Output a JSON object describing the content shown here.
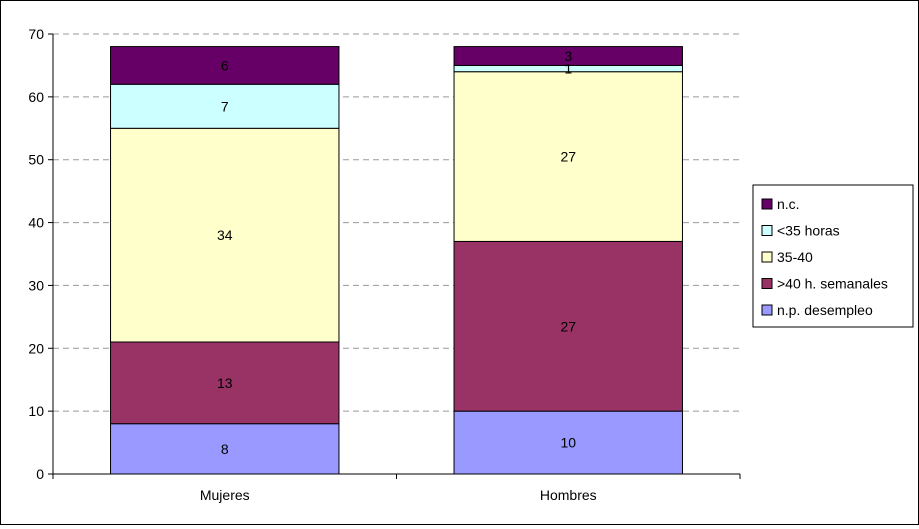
{
  "chart_data": {
    "type": "bar",
    "stacked": true,
    "categories": [
      "Mujeres",
      "Hombres"
    ],
    "series": [
      {
        "name": "n.p. desempleo",
        "values": [
          8,
          10
        ],
        "color": "#9999ff"
      },
      {
        "name": ">40 h. semanales",
        "values": [
          13,
          27
        ],
        "color": "#993366"
      },
      {
        "name": "35-40",
        "values": [
          34,
          27
        ],
        "color": "#ffffcc"
      },
      {
        "name": "<35 horas",
        "values": [
          7,
          1
        ],
        "color": "#ccffff"
      },
      {
        "name": "n.c.",
        "values": [
          6,
          3
        ],
        "color": "#660066"
      }
    ],
    "data_labels": [
      [
        "8",
        "10"
      ],
      [
        "13",
        "27"
      ],
      [
        "34",
        "27"
      ],
      [
        "7",
        "1"
      ],
      [
        "6",
        "3"
      ]
    ],
    "ylim": [
      0,
      70
    ],
    "yticks": [
      0,
      10,
      20,
      30,
      40,
      50,
      60,
      70
    ],
    "ytick_labels": [
      "0",
      "10",
      "20",
      "30",
      "40",
      "50",
      "60",
      "70"
    ],
    "grid": true,
    "legend_position": "right",
    "legend_order": [
      "n.c.",
      "<35 horas",
      "35-40",
      ">40 h. semanales",
      "n.p. desempleo"
    ],
    "title": "",
    "xlabel": "",
    "ylabel": ""
  }
}
